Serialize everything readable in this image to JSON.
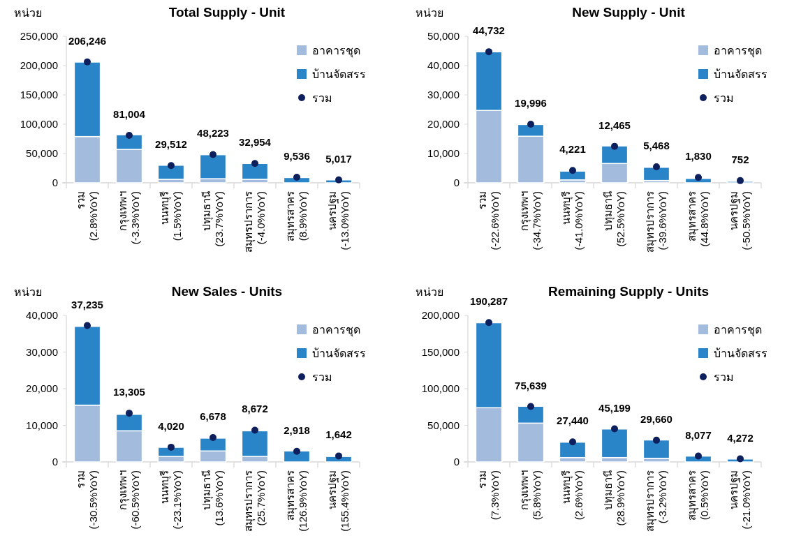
{
  "chart_data": [
    {
      "type": "bar",
      "title": "Total Supply - Unit",
      "ylabel": "หน่วย",
      "stacked": true,
      "legend": "top right",
      "categories": [
        "รวม\n(2.8%YoY)",
        "กรุงเทพฯ\n(-3.3%YoY)",
        "นนทบุรี\n(1.5%YoY)",
        "ปทุมธานี\n(23.7%YoY)",
        "สมุทรปราการ\n(-4.0%YoY)",
        "สมุทรสาคร\n(8.9%YoY)",
        "นครปฐม\n(-13.0%YoY)"
      ],
      "ylim": [
        0,
        250000
      ],
      "yticks": [
        {
          "value": 0,
          "label": "0"
        },
        {
          "value": 50000,
          "label": "50,000"
        },
        {
          "value": 100000,
          "label": "100,000"
        },
        {
          "value": 150000,
          "label": "150,000"
        },
        {
          "value": 200000,
          "label": "200,000"
        },
        {
          "value": 250000,
          "label": "250,000"
        }
      ],
      "series": [
        {
          "name": "อาคารชุด",
          "color": "#a3bbdd",
          "values": [
            79000,
            57000,
            6000,
            7000,
            6000,
            0,
            0
          ]
        },
        {
          "name": "บ้านจัดสรร",
          "color": "#2a84c8",
          "values": [
            127000,
            25000,
            24000,
            41000,
            27000,
            9000,
            5000
          ]
        },
        {
          "name": "รวม",
          "type": "scatter",
          "marker": "circle",
          "color": "#0d1f5c",
          "values": [
            206246,
            81004,
            29512,
            48223,
            32954,
            9536,
            5017
          ],
          "value_labels": [
            "206,246",
            "81,004",
            "29,512",
            "48,223",
            "32,954",
            "9,536",
            "5,017"
          ]
        }
      ]
    },
    {
      "type": "bar",
      "title": "New Supply - Unit",
      "ylabel": "หน่วย",
      "stacked": true,
      "legend": "top right",
      "categories": [
        "รวม\n(-22.6%YoY)",
        "กรุงเทพฯ\n(-34.7%YoY)",
        "นนทบุรี\n(-41.0%YoY)",
        "ปทุมธานี\n(52.5%YoY)",
        "สมุทรปราการ\n(-39.6%YoY)",
        "สมุทรสาคร\n(44.8%YoY)",
        "นครปฐม\n(-50.5%YoY)"
      ],
      "ylim": [
        0,
        50000
      ],
      "yticks": [
        {
          "value": 0,
          "label": "0"
        },
        {
          "value": 10000,
          "label": "10,000"
        },
        {
          "value": 20000,
          "label": "20,000"
        },
        {
          "value": 30000,
          "label": "30,000"
        },
        {
          "value": 40000,
          "label": "40,000"
        },
        {
          "value": 50000,
          "label": "50,000"
        }
      ],
      "series": [
        {
          "name": "อาคารชุด",
          "color": "#a3bbdd",
          "values": [
            24700,
            15900,
            1000,
            6600,
            800,
            0,
            0
          ]
        },
        {
          "name": "บ้านจัดสรร",
          "color": "#2a84c8",
          "values": [
            20000,
            4000,
            3000,
            6000,
            4500,
            1500,
            500
          ]
        },
        {
          "name": "รวม",
          "type": "scatter",
          "marker": "circle",
          "color": "#0d1f5c",
          "values": [
            44732,
            19996,
            4221,
            12465,
            5468,
            1830,
            752
          ],
          "value_labels": [
            "44,732",
            "19,996",
            "4,221",
            "12,465",
            "5,468",
            "1,830",
            "752"
          ]
        }
      ]
    },
    {
      "type": "bar",
      "title": "New Sales - Units",
      "ylabel": "หน่วย",
      "stacked": true,
      "legend": "top right",
      "categories": [
        "รวม\n(-30.5%YoY)",
        "กรุงเทพฯ\n(-60.5%YoY)",
        "นนทบุรี\n(-23.1%YoY)",
        "ปทุมธานี\n(13.6%YoY)",
        "สมุทรปราการ\n(25.7%YoY)",
        "สมุทรสาคร\n(126.9%YoY)",
        "นครปฐม\n(155.4%YoY)"
      ],
      "ylim": [
        0,
        40000
      ],
      "yticks": [
        {
          "value": 0,
          "label": "0"
        },
        {
          "value": 10000,
          "label": "10,000"
        },
        {
          "value": 20000,
          "label": "20,000"
        },
        {
          "value": 30000,
          "label": "30,000"
        },
        {
          "value": 40000,
          "label": "40,000"
        }
      ],
      "series": [
        {
          "name": "อาคารชุด",
          "color": "#a3bbdd",
          "values": [
            15500,
            8500,
            1500,
            3000,
            1500,
            0,
            0
          ]
        },
        {
          "name": "บ้านจัดสรร",
          "color": "#2a84c8",
          "values": [
            21500,
            4500,
            2500,
            3500,
            7000,
            3000,
            1500
          ]
        },
        {
          "name": "รวม",
          "type": "scatter",
          "marker": "circle",
          "color": "#0d1f5c",
          "values": [
            37235,
            13305,
            4020,
            6678,
            8672,
            2918,
            1642
          ],
          "value_labels": [
            "37,235",
            "13,305",
            "4,020",
            "6,678",
            "8,672",
            "2,918",
            "1,642"
          ]
        }
      ]
    },
    {
      "type": "bar",
      "title": "Remaining Supply - Units",
      "ylabel": "หน่วย",
      "stacked": true,
      "legend": "top right",
      "categories": [
        "รวม\n(7.3%YoY)",
        "กรุงเทพฯ\n(5.8%YoY)",
        "นนทบุรี\n(2.6%YoY)",
        "ปทุมธานี\n(28.9%YoY)",
        "สมุทรปราการ\n(-3.2%YoY)",
        "สมุทรสาคร\n(0.5%YoY)",
        "นครปฐม\n(-21.0%YoY)"
      ],
      "ylim": [
        0,
        200000
      ],
      "yticks": [
        {
          "value": 0,
          "label": "0"
        },
        {
          "value": 50000,
          "label": "50,000"
        },
        {
          "value": 100000,
          "label": "100,000"
        },
        {
          "value": 150000,
          "label": "150,000"
        },
        {
          "value": 200000,
          "label": "200,000"
        }
      ],
      "series": [
        {
          "name": "อาคารชุด",
          "color": "#a3bbdd",
          "values": [
            74000,
            53000,
            6000,
            6000,
            5000,
            0,
            0
          ]
        },
        {
          "name": "บ้านจัดสรร",
          "color": "#2a84c8",
          "values": [
            116000,
            23000,
            21000,
            39000,
            25000,
            8000,
            4000
          ]
        },
        {
          "name": "รวม",
          "type": "scatter",
          "marker": "circle",
          "color": "#0d1f5c",
          "values": [
            190287,
            75639,
            27440,
            45199,
            29660,
            8077,
            4272
          ],
          "value_labels": [
            "190,287",
            "75,639",
            "27,440",
            "45,199",
            "29,660",
            "8,077",
            "4,272"
          ]
        }
      ]
    }
  ]
}
